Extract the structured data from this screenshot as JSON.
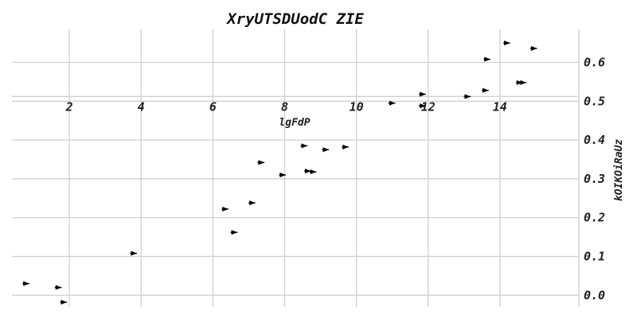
{
  "chart_data": {
    "type": "scatter",
    "title": "XryUTSDUodC ZIE",
    "xlabel": "lgFdP",
    "ylabel": "kOIKOiRaUz",
    "xlim": [
      0.4,
      16.2
    ],
    "ylim": [
      -0.03,
      0.685
    ],
    "xticks": [
      2,
      4,
      6,
      8,
      10,
      12,
      14
    ],
    "yticks": [
      0.0,
      0.1,
      0.2,
      0.3,
      0.4,
      0.5,
      0.6
    ],
    "xtick_labels": [
      "2",
      "4",
      "6",
      "8",
      "10",
      "12",
      "14"
    ],
    "ytick_labels": [
      "0.0",
      "0.1",
      "0.2",
      "0.3",
      "0.4",
      "0.5",
      "0.6"
    ],
    "x_axis_at_y": 0.5,
    "grid": true,
    "marker": "tri_right",
    "x": [
      0.8,
      1.7,
      1.85,
      3.8,
      6.35,
      6.6,
      7.1,
      7.35,
      7.95,
      8.55,
      8.65,
      8.8,
      9.15,
      9.7,
      11.0,
      11.85,
      11.85,
      13.1,
      13.6,
      13.65,
      14.2,
      14.55,
      14.65,
      14.95
    ],
    "y": [
      0.03,
      0.02,
      -0.018,
      0.108,
      0.222,
      0.162,
      0.238,
      0.342,
      0.31,
      0.385,
      0.32,
      0.318,
      0.375,
      0.382,
      0.495,
      0.518,
      0.488,
      0.512,
      0.528,
      0.608,
      0.65,
      0.548,
      0.548,
      0.636
    ]
  }
}
